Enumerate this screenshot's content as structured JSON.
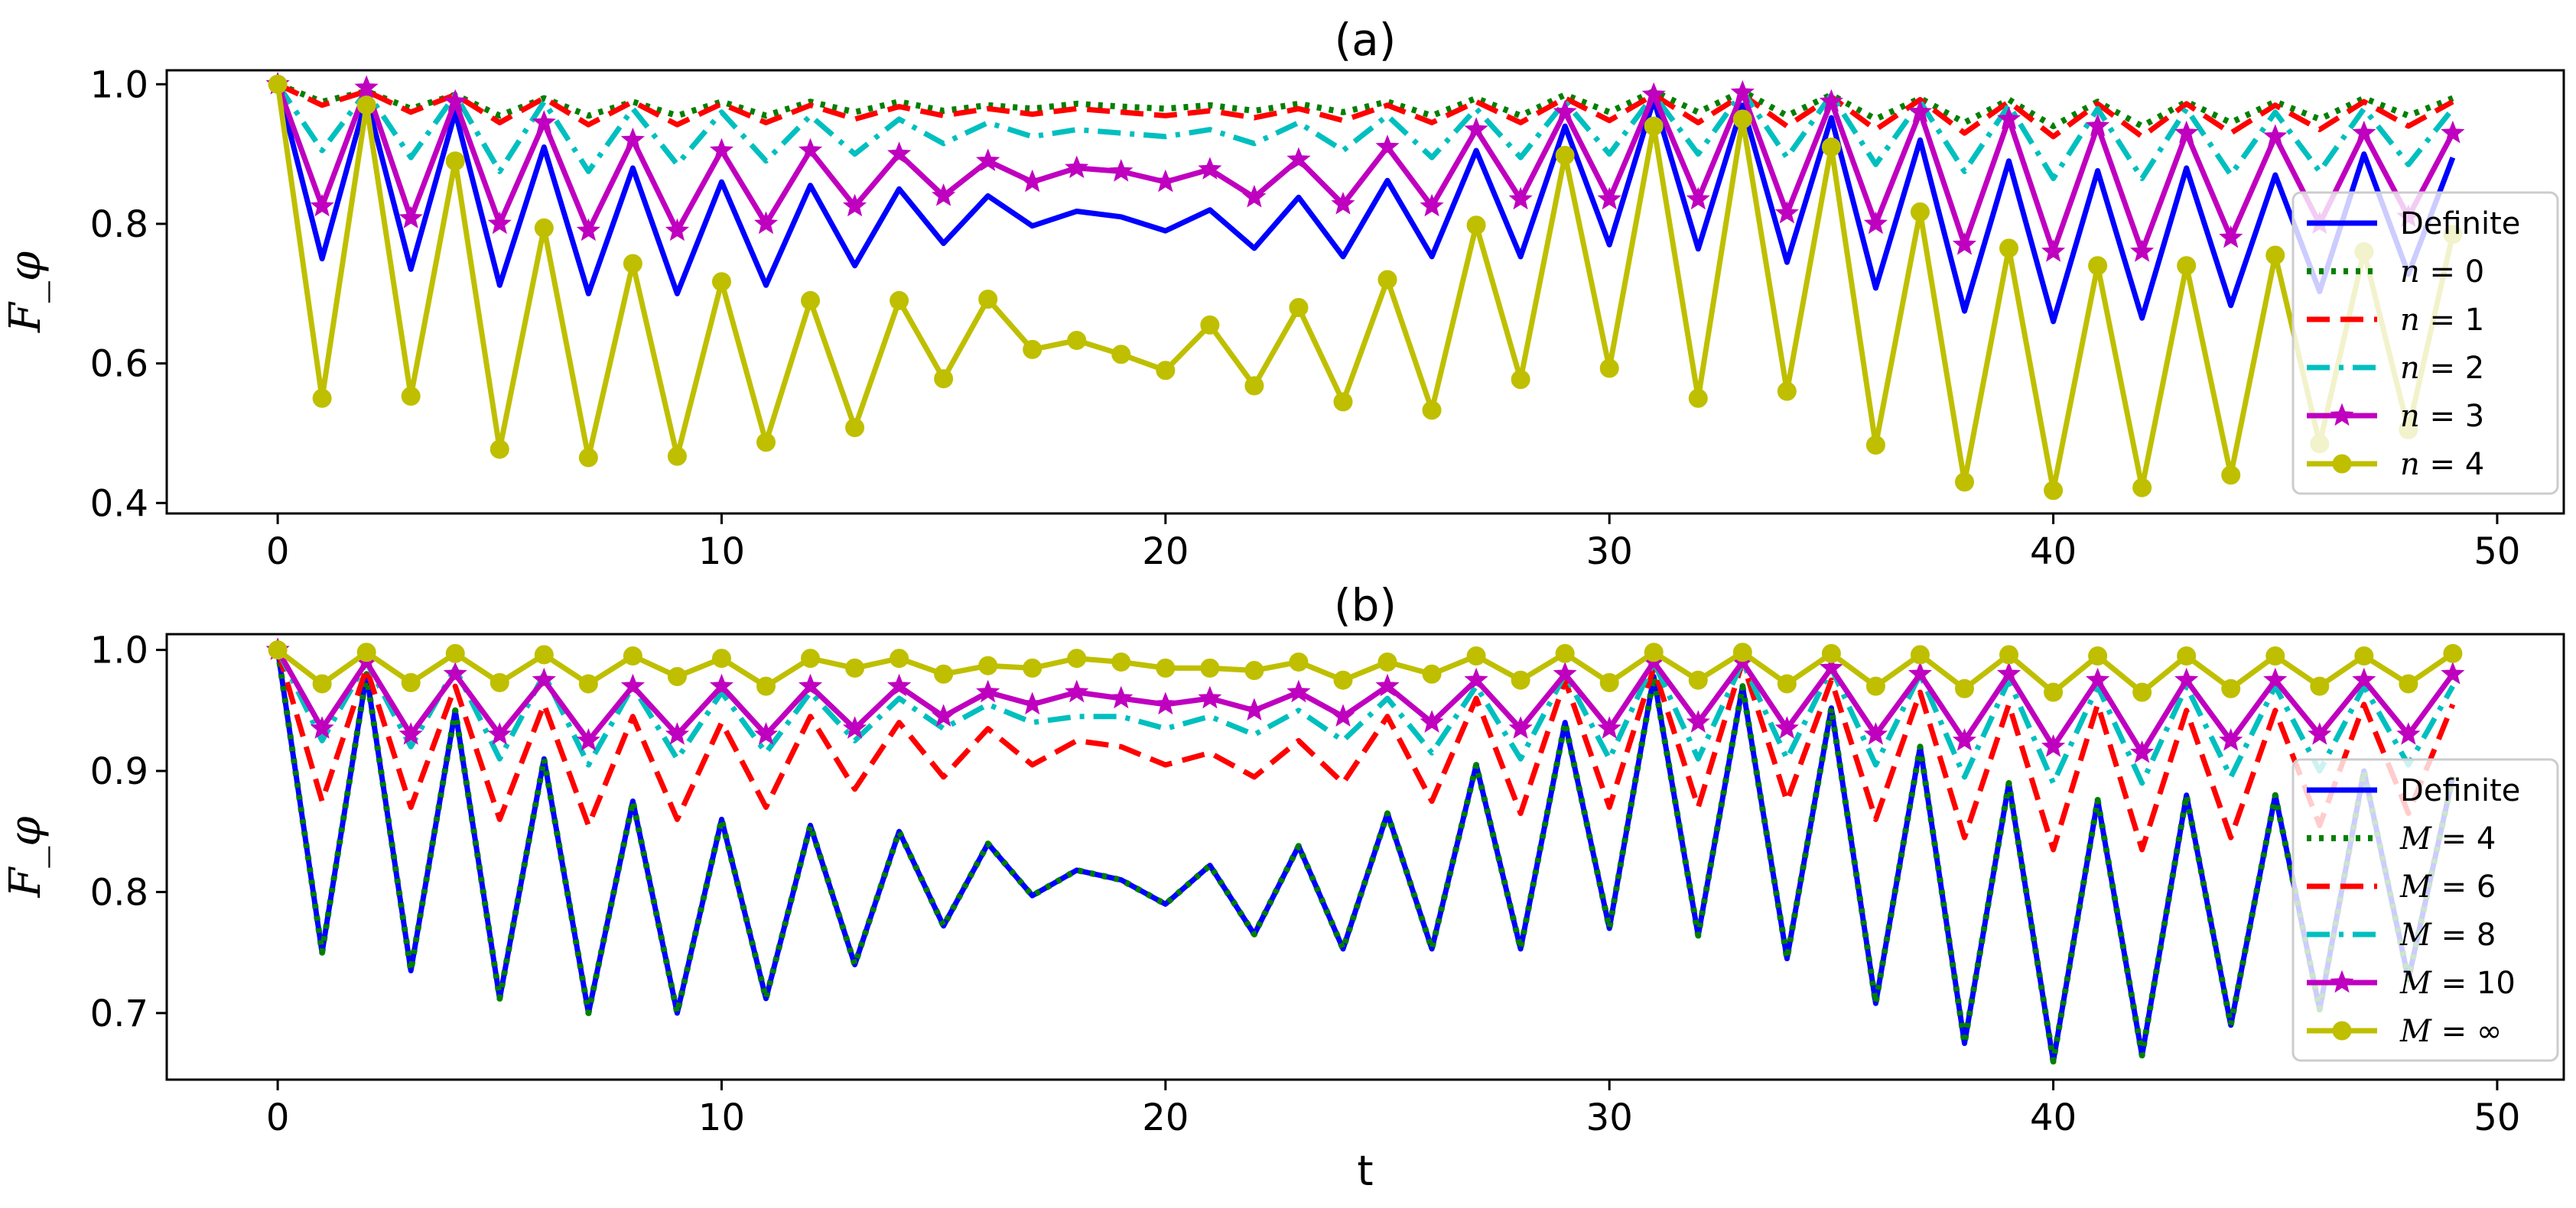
{
  "chart_data": [
    {
      "type": "line",
      "title": "(a)",
      "xlabel": "",
      "ylabel": "F_φ",
      "xlim": [
        -2.5,
        51.5
      ],
      "ylim": [
        0.385,
        1.02
      ],
      "xticks": [
        0,
        10,
        20,
        30,
        40,
        50
      ],
      "xtick_labels": [
        "0",
        "10",
        "20",
        "30",
        "40",
        "50"
      ],
      "yticks": [
        0.4,
        0.6,
        0.8,
        1.0
      ],
      "ytick_labels": [
        "0.4",
        "0.6",
        "0.8",
        "1.0"
      ],
      "legend_position": "right",
      "x": [
        0,
        1,
        2,
        3,
        4,
        5,
        6,
        7,
        8,
        9,
        10,
        11,
        12,
        13,
        14,
        15,
        16,
        17,
        18,
        19,
        20,
        21,
        22,
        23,
        24,
        25,
        26,
        27,
        28,
        29,
        30,
        31,
        32,
        33,
        34,
        35,
        36,
        37,
        38,
        39,
        40,
        41,
        42,
        43,
        44,
        45,
        46,
        47,
        48,
        49
      ],
      "series": [
        {
          "name": "Definite",
          "legend_label": "Definite",
          "color": "#0000ff",
          "style": "solid",
          "marker": "none",
          "values": [
            1.0,
            0.75,
            0.98,
            0.735,
            0.96,
            0.712,
            0.91,
            0.7,
            0.88,
            0.7,
            0.86,
            0.712,
            0.855,
            0.74,
            0.85,
            0.772,
            0.84,
            0.797,
            0.818,
            0.81,
            0.79,
            0.82,
            0.765,
            0.838,
            0.753,
            0.862,
            0.753,
            0.905,
            0.753,
            0.94,
            0.77,
            0.978,
            0.764,
            0.97,
            0.745,
            0.952,
            0.708,
            0.92,
            0.675,
            0.89,
            0.66,
            0.876,
            0.665,
            0.88,
            0.683,
            0.87,
            0.703,
            0.9,
            0.728,
            0.895
          ]
        },
        {
          "name": "n=0",
          "legend_var": "n",
          "legend_val": "0",
          "color": "#008000",
          "style": "dotted",
          "marker": "none",
          "values": [
            1.0,
            0.975,
            0.99,
            0.965,
            0.985,
            0.955,
            0.98,
            0.955,
            0.975,
            0.955,
            0.975,
            0.955,
            0.975,
            0.96,
            0.975,
            0.962,
            0.97,
            0.965,
            0.972,
            0.968,
            0.965,
            0.97,
            0.962,
            0.972,
            0.96,
            0.975,
            0.955,
            0.98,
            0.955,
            0.985,
            0.96,
            0.99,
            0.96,
            0.99,
            0.955,
            0.985,
            0.95,
            0.98,
            0.945,
            0.978,
            0.94,
            0.975,
            0.94,
            0.975,
            0.945,
            0.975,
            0.95,
            0.98,
            0.955,
            0.98
          ]
        },
        {
          "name": "n=1",
          "legend_var": "n",
          "legend_val": "1",
          "color": "#ff0000",
          "style": "dashed",
          "marker": "none",
          "values": [
            1.0,
            0.97,
            0.99,
            0.96,
            0.985,
            0.945,
            0.98,
            0.942,
            0.975,
            0.942,
            0.972,
            0.945,
            0.97,
            0.95,
            0.968,
            0.955,
            0.965,
            0.957,
            0.965,
            0.96,
            0.955,
            0.962,
            0.952,
            0.965,
            0.948,
            0.97,
            0.945,
            0.975,
            0.945,
            0.98,
            0.948,
            0.985,
            0.945,
            0.985,
            0.94,
            0.982,
            0.935,
            0.978,
            0.93,
            0.975,
            0.925,
            0.972,
            0.925,
            0.972,
            0.93,
            0.97,
            0.935,
            0.975,
            0.94,
            0.975
          ]
        },
        {
          "name": "n=2",
          "legend_var": "n",
          "legend_val": "2",
          "color": "#00bfbf",
          "style": "dashdot",
          "marker": "none",
          "values": [
            1.0,
            0.905,
            0.99,
            0.895,
            0.985,
            0.875,
            0.975,
            0.875,
            0.965,
            0.885,
            0.96,
            0.89,
            0.955,
            0.9,
            0.95,
            0.915,
            0.945,
            0.925,
            0.935,
            0.93,
            0.925,
            0.935,
            0.915,
            0.945,
            0.905,
            0.955,
            0.895,
            0.965,
            0.895,
            0.975,
            0.9,
            0.985,
            0.9,
            0.99,
            0.895,
            0.985,
            0.885,
            0.975,
            0.875,
            0.97,
            0.865,
            0.965,
            0.865,
            0.965,
            0.87,
            0.96,
            0.875,
            0.965,
            0.885,
            0.965
          ]
        },
        {
          "name": "n=3",
          "legend_var": "n",
          "legend_val": "3",
          "color": "#bf00bf",
          "style": "solid",
          "marker": "star",
          "values": [
            1.0,
            0.825,
            0.995,
            0.808,
            0.975,
            0.8,
            0.945,
            0.79,
            0.92,
            0.79,
            0.905,
            0.8,
            0.905,
            0.825,
            0.9,
            0.84,
            0.89,
            0.86,
            0.88,
            0.875,
            0.86,
            0.878,
            0.838,
            0.892,
            0.828,
            0.91,
            0.825,
            0.935,
            0.835,
            0.96,
            0.835,
            0.985,
            0.835,
            0.988,
            0.815,
            0.975,
            0.8,
            0.96,
            0.77,
            0.95,
            0.76,
            0.94,
            0.76,
            0.93,
            0.78,
            0.925,
            0.8,
            0.93,
            0.81,
            0.93
          ]
        },
        {
          "name": "n=4",
          "legend_var": "n",
          "legend_val": "4",
          "color": "#bfbf00",
          "style": "solid",
          "marker": "circle",
          "values": [
            1.0,
            0.55,
            0.97,
            0.553,
            0.89,
            0.477,
            0.794,
            0.465,
            0.743,
            0.467,
            0.717,
            0.487,
            0.69,
            0.508,
            0.69,
            0.578,
            0.692,
            0.62,
            0.633,
            0.613,
            0.59,
            0.655,
            0.568,
            0.68,
            0.545,
            0.72,
            0.533,
            0.798,
            0.577,
            0.898,
            0.593,
            0.94,
            0.55,
            0.95,
            0.56,
            0.91,
            0.483,
            0.817,
            0.43,
            0.765,
            0.418,
            0.74,
            0.422,
            0.74,
            0.44,
            0.755,
            0.485,
            0.76,
            0.505,
            0.785
          ]
        }
      ]
    },
    {
      "type": "line",
      "title": "(b)",
      "xlabel": "t",
      "ylabel": "F_φ",
      "xlim": [
        -2.5,
        51.5
      ],
      "ylim": [
        0.645,
        1.013
      ],
      "xticks": [
        0,
        10,
        20,
        30,
        40,
        50
      ],
      "xtick_labels": [
        "0",
        "10",
        "20",
        "30",
        "40",
        "50"
      ],
      "yticks": [
        0.7,
        0.8,
        0.9,
        1.0
      ],
      "ytick_labels": [
        "0.7",
        "0.8",
        "0.9",
        "1.0"
      ],
      "legend_position": "right",
      "x": [
        0,
        1,
        2,
        3,
        4,
        5,
        6,
        7,
        8,
        9,
        10,
        11,
        12,
        13,
        14,
        15,
        16,
        17,
        18,
        19,
        20,
        21,
        22,
        23,
        24,
        25,
        26,
        27,
        28,
        29,
        30,
        31,
        32,
        33,
        34,
        35,
        36,
        37,
        38,
        39,
        40,
        41,
        42,
        43,
        44,
        45,
        46,
        47,
        48,
        49
      ],
      "series": [
        {
          "name": "Definite",
          "legend_label": "Definite",
          "color": "#0000ff",
          "style": "solid",
          "marker": "none",
          "values": [
            1.0,
            0.75,
            0.98,
            0.735,
            0.95,
            0.712,
            0.91,
            0.7,
            0.875,
            0.7,
            0.86,
            0.712,
            0.855,
            0.74,
            0.85,
            0.772,
            0.84,
            0.797,
            0.818,
            0.81,
            0.79,
            0.822,
            0.765,
            0.838,
            0.753,
            0.865,
            0.753,
            0.905,
            0.753,
            0.94,
            0.77,
            0.978,
            0.764,
            0.97,
            0.745,
            0.952,
            0.708,
            0.92,
            0.675,
            0.89,
            0.66,
            0.876,
            0.665,
            0.88,
            0.69,
            0.88,
            0.703,
            0.9,
            0.728,
            0.895
          ]
        },
        {
          "name": "M=4",
          "legend_var": "M",
          "legend_val": "4",
          "color": "#008000",
          "style": "dotted",
          "marker": "none",
          "values": [
            1.0,
            0.75,
            0.98,
            0.735,
            0.95,
            0.712,
            0.91,
            0.7,
            0.875,
            0.7,
            0.86,
            0.712,
            0.855,
            0.74,
            0.85,
            0.772,
            0.84,
            0.797,
            0.818,
            0.81,
            0.79,
            0.822,
            0.765,
            0.838,
            0.753,
            0.865,
            0.753,
            0.905,
            0.753,
            0.94,
            0.77,
            0.978,
            0.764,
            0.97,
            0.745,
            0.952,
            0.708,
            0.92,
            0.675,
            0.89,
            0.66,
            0.876,
            0.665,
            0.88,
            0.69,
            0.88,
            0.703,
            0.9,
            0.728,
            0.895
          ]
        },
        {
          "name": "M=6",
          "legend_var": "M",
          "legend_val": "6",
          "color": "#ff0000",
          "style": "dashed",
          "marker": "none",
          "values": [
            1.0,
            0.875,
            0.985,
            0.87,
            0.97,
            0.86,
            0.955,
            0.855,
            0.945,
            0.86,
            0.94,
            0.87,
            0.945,
            0.885,
            0.94,
            0.895,
            0.935,
            0.905,
            0.925,
            0.92,
            0.905,
            0.915,
            0.895,
            0.925,
            0.89,
            0.945,
            0.875,
            0.96,
            0.865,
            0.975,
            0.87,
            0.985,
            0.87,
            0.99,
            0.875,
            0.975,
            0.86,
            0.965,
            0.845,
            0.955,
            0.835,
            0.955,
            0.835,
            0.95,
            0.845,
            0.95,
            0.855,
            0.955,
            0.865,
            0.955
          ]
        },
        {
          "name": "M=8",
          "legend_var": "M",
          "legend_val": "8",
          "color": "#00bfbf",
          "style": "dashdot",
          "marker": "none",
          "values": [
            1.0,
            0.925,
            0.99,
            0.92,
            0.985,
            0.91,
            0.98,
            0.905,
            0.97,
            0.91,
            0.965,
            0.915,
            0.965,
            0.925,
            0.96,
            0.935,
            0.955,
            0.94,
            0.945,
            0.945,
            0.935,
            0.945,
            0.93,
            0.95,
            0.925,
            0.96,
            0.915,
            0.97,
            0.91,
            0.98,
            0.91,
            0.99,
            0.91,
            0.99,
            0.91,
            0.985,
            0.905,
            0.98,
            0.895,
            0.975,
            0.89,
            0.97,
            0.89,
            0.97,
            0.895,
            0.97,
            0.9,
            0.97,
            0.905,
            0.97
          ]
        },
        {
          "name": "M=10",
          "legend_var": "M",
          "legend_val": "10",
          "color": "#bf00bf",
          "style": "solid",
          "marker": "star",
          "values": [
            1.0,
            0.935,
            0.99,
            0.93,
            0.98,
            0.93,
            0.975,
            0.925,
            0.97,
            0.93,
            0.97,
            0.93,
            0.97,
            0.935,
            0.97,
            0.945,
            0.965,
            0.955,
            0.965,
            0.96,
            0.955,
            0.96,
            0.95,
            0.965,
            0.945,
            0.97,
            0.94,
            0.975,
            0.935,
            0.98,
            0.935,
            0.99,
            0.94,
            0.99,
            0.935,
            0.985,
            0.93,
            0.98,
            0.925,
            0.98,
            0.92,
            0.975,
            0.915,
            0.975,
            0.925,
            0.975,
            0.93,
            0.975,
            0.93,
            0.98
          ]
        },
        {
          "name": "M=∞",
          "legend_var": "M",
          "legend_val": "∞",
          "color": "#bfbf00",
          "style": "solid",
          "marker": "circle",
          "values": [
            1.0,
            0.972,
            0.998,
            0.973,
            0.997,
            0.973,
            0.996,
            0.972,
            0.995,
            0.978,
            0.993,
            0.97,
            0.993,
            0.985,
            0.993,
            0.98,
            0.987,
            0.985,
            0.993,
            0.99,
            0.985,
            0.985,
            0.983,
            0.99,
            0.975,
            0.99,
            0.98,
            0.995,
            0.975,
            0.997,
            0.973,
            0.998,
            0.975,
            0.998,
            0.972,
            0.997,
            0.97,
            0.996,
            0.968,
            0.996,
            0.965,
            0.995,
            0.965,
            0.995,
            0.968,
            0.995,
            0.97,
            0.995,
            0.972,
            0.997
          ]
        }
      ]
    }
  ]
}
